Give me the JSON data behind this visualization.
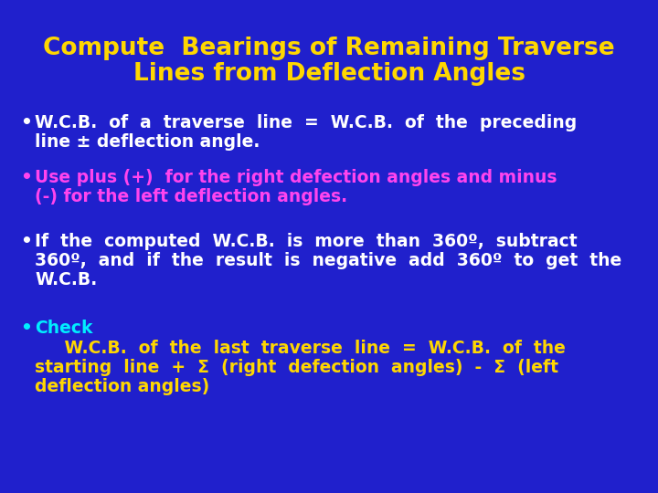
{
  "background_color": "#2020CC",
  "title_line1": "Compute  Bearings of Remaining Traverse",
  "title_line2": "Lines from Deflection Angles",
  "title_color": "#FFD700",
  "title_fontsize": 19,
  "bullet_fontsize": 13.5,
  "fig_width": 7.2,
  "fig_height": 5.4,
  "fig_dpi": 100,
  "bullets": [
    {
      "color": "#FFFFFF",
      "lines": [
        "W.C.B.  of  a  traverse  line  =  W.C.B.  of  the  preceding",
        "line ± deflection angle."
      ]
    },
    {
      "color": "#FF44EE",
      "lines": [
        "Use plus (+)  for the right defection angles and minus",
        "(-) for the left deflection angles."
      ]
    },
    {
      "color": "#FFFFFF",
      "lines": [
        "If  the  computed  W.C.B.  is  more  than  360º,  subtract",
        "360º,  and  if  the  result  is  negative  add  360º  to  get  the",
        "W.C.B."
      ]
    },
    {
      "color": "#00EEFF",
      "lines": [
        "Check"
      ]
    }
  ],
  "check_sub_color": "#FFD700",
  "check_sub_lines": [
    "     W.C.B.  of  the  last  traverse  line  =  W.C.B.  of  the",
    "starting  line  +  Σ  (right  defection  angles)  -  Σ  (left",
    "deflection angles)"
  ]
}
